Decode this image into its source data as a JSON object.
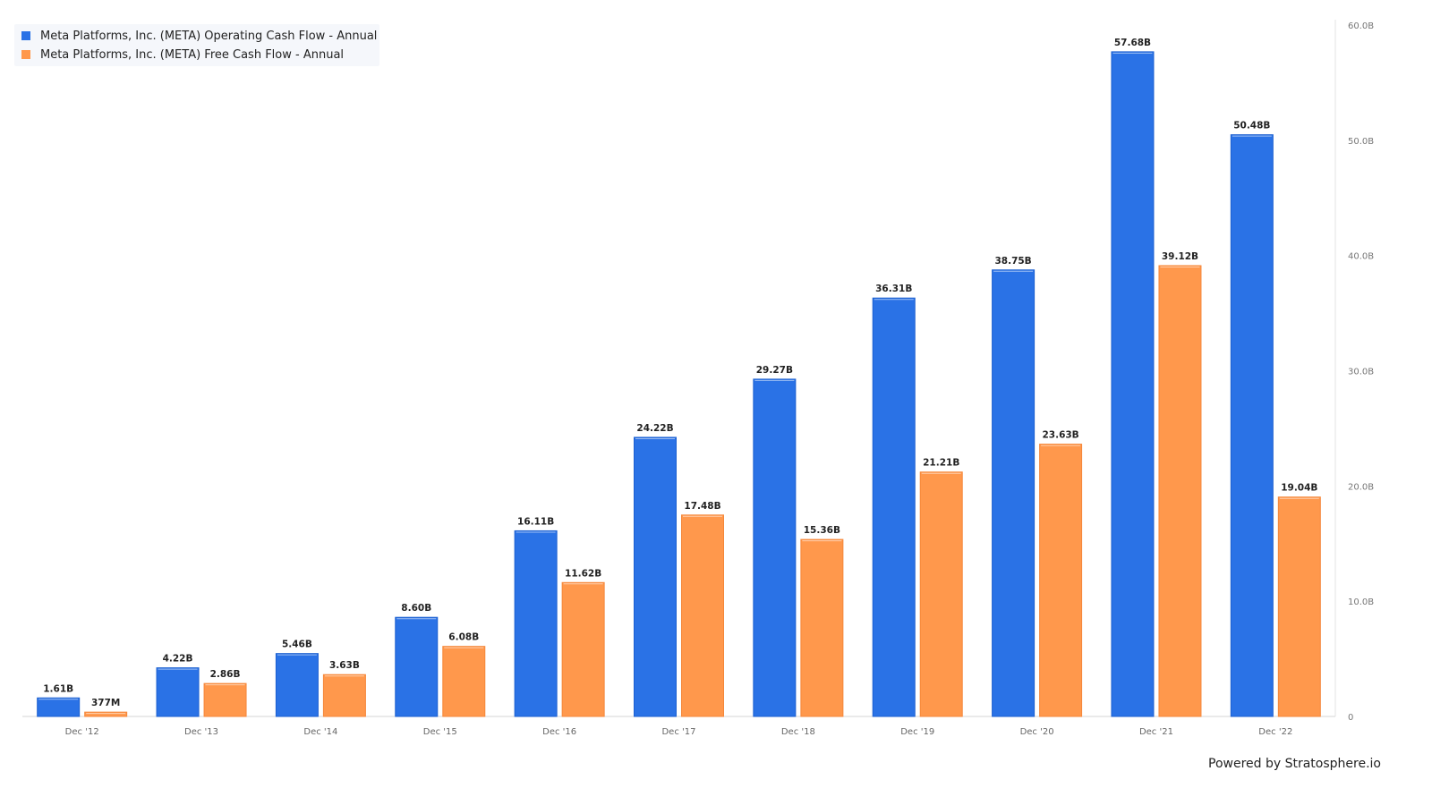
{
  "chart_data": {
    "type": "bar",
    "categories": [
      "Dec '12",
      "Dec '13",
      "Dec '14",
      "Dec '15",
      "Dec '16",
      "Dec '17",
      "Dec '18",
      "Dec '19",
      "Dec '20",
      "Dec '21",
      "Dec '22"
    ],
    "series": [
      {
        "name": "Meta Platforms, Inc. (META) Operating Cash Flow - Annual",
        "color": "#2a72e6",
        "values": [
          1.61,
          4.22,
          5.46,
          8.6,
          16.11,
          24.22,
          29.27,
          36.31,
          38.75,
          57.68,
          50.48
        ],
        "labels": [
          "1.61B",
          "4.22B",
          "5.46B",
          "8.60B",
          "16.11B",
          "24.22B",
          "29.27B",
          "36.31B",
          "38.75B",
          "57.68B",
          "50.48B"
        ]
      },
      {
        "name": "Meta Platforms, Inc. (META) Free Cash Flow - Annual",
        "color": "#ff984c",
        "values": [
          0.377,
          2.86,
          3.63,
          6.08,
          11.62,
          17.48,
          15.36,
          21.21,
          23.63,
          39.12,
          19.04
        ],
        "labels": [
          "377M",
          "2.86B",
          "3.63B",
          "6.08B",
          "11.62B",
          "17.48B",
          "15.36B",
          "21.21B",
          "23.63B",
          "39.12B",
          "19.04B"
        ]
      }
    ],
    "y_ticks": [
      0,
      10,
      20,
      30,
      40,
      50,
      60
    ],
    "y_tick_labels": [
      "0",
      "10.0B",
      "20.0B",
      "30.0B",
      "40.0B",
      "50.0B",
      "60.0B"
    ],
    "ylim": [
      0,
      60
    ],
    "y_axis_position": "right",
    "grid": false,
    "legend_position": "top-left"
  },
  "footer": {
    "text": "Powered by Stratosphere.io"
  }
}
